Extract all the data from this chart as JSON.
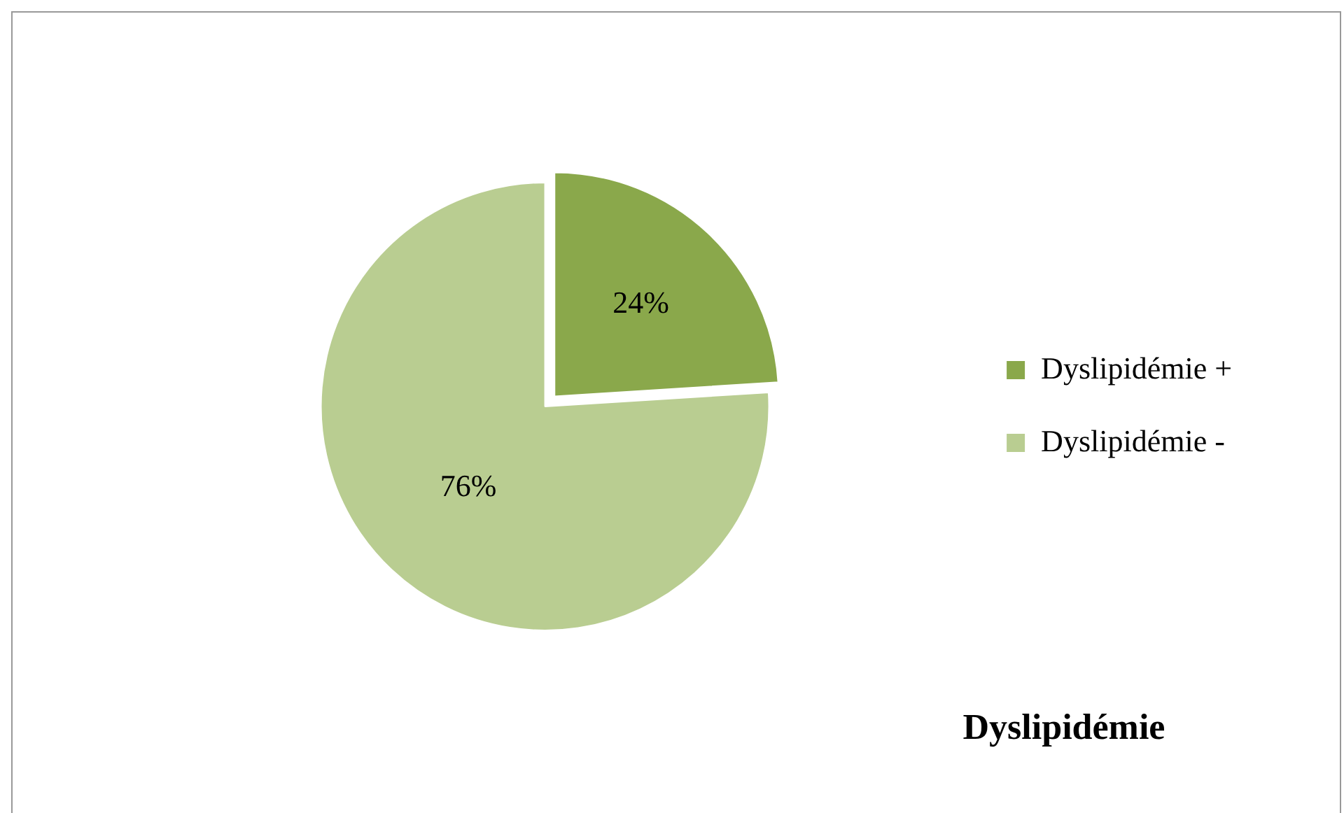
{
  "chart_data": {
    "type": "pie",
    "title": "Dyslipidémie",
    "categories": [
      "Dyslipidémie +",
      "Dyslipidémie -"
    ],
    "values": [
      24,
      76
    ],
    "colors": [
      "#8aa84b",
      "#b9cd91"
    ],
    "value_labels": [
      "24%",
      "76%"
    ],
    "legend": "right"
  }
}
